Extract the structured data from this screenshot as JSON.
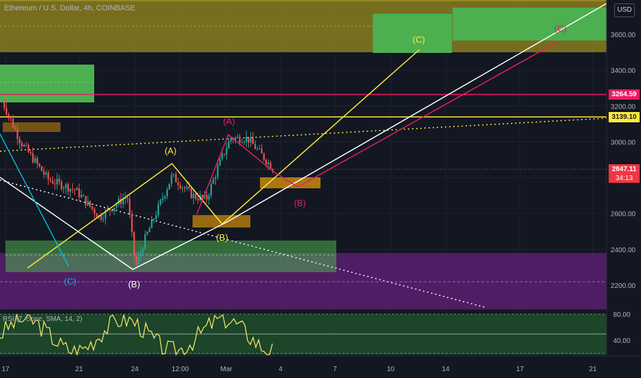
{
  "title": "Ethereum / U.S. Dollar, 4h, COINBASE",
  "currency_button": "USD",
  "rsi_legend": "RSI (7, close, SMA, 14, 2)",
  "price_labels": [
    {
      "key": "level_high",
      "text": "3264.59",
      "value": 3264.59,
      "bg": "#e91e63",
      "fg": "#ffffff"
    },
    {
      "key": "level_mid",
      "text": "3139.10",
      "value": 3139.1,
      "bg": "#ffeb3b",
      "fg": "#131722"
    },
    {
      "key": "last",
      "text": "2847.11",
      "value": 2847.11,
      "bg": "#f23645",
      "fg": "#ffffff"
    }
  ],
  "countdown": "34:13",
  "colors": {
    "up": "#26a69a",
    "down": "#ef5350",
    "yellow": "#ffeb3b",
    "pink": "#e91e63",
    "cyan": "#00bcd4",
    "white": "#ffffff",
    "green_zone": "#4caf50",
    "olive_zone": "#8a7d1e",
    "purple_zone": "#5b1f6e",
    "orange_zone": "#c8870f",
    "rsi_line": "#f0e468",
    "rsi_bg": "#1e4a2a"
  },
  "chart_data": {
    "type": "candlestick",
    "instrument": "Ethereum / U.S. Dollar",
    "interval": "4h",
    "exchange": "COINBASE",
    "x_ticks": [
      "17",
      "21",
      "24",
      "12:00",
      "Mar",
      "4",
      "7",
      "10",
      "14",
      "17",
      "21"
    ],
    "y_ticks": [
      2200,
      2400,
      2600,
      2800,
      3000,
      3200,
      3400,
      3600
    ],
    "y_range": [
      2080,
      3760
    ],
    "last_price": 2847.11,
    "horizontal_levels": [
      {
        "value": 3264.59,
        "color": "#e91e63"
      },
      {
        "value": 3139.1,
        "color": "#ffeb3b"
      }
    ],
    "wave_labels": [
      {
        "text": "(A)",
        "color": "#ffeb3b",
        "price": 3040
      },
      {
        "text": "(B)",
        "color": "#ffeb3b",
        "price": 2470
      },
      {
        "text": "(C)",
        "color": "#ffeb3b",
        "price": 3590
      },
      {
        "text": "(A)",
        "color": "#e91e63",
        "price": 3160
      },
      {
        "text": "(B)",
        "color": "#e91e63",
        "price": 2680
      },
      {
        "text": "(C)",
        "color": "#e91e63",
        "price": 3620
      },
      {
        "text": "(B)",
        "color": "#ffffff",
        "price": 2230
      },
      {
        "text": "(C)",
        "color": "#00bcd4",
        "price": 2240
      }
    ],
    "zones": [
      {
        "type": "resistance",
        "color": "olive",
        "from": 3505,
        "to": 3760
      },
      {
        "type": "target",
        "color": "green",
        "from": 3500,
        "to": 3710
      },
      {
        "type": "support",
        "color": "green",
        "from": 2300,
        "to": 2468
      },
      {
        "type": "support",
        "color": "purple",
        "from": 2080,
        "to": 2380
      }
    ],
    "rsi": {
      "period": 7,
      "source": "close",
      "ma": "SMA",
      "ma_length": 14,
      "y_ticks": [
        40,
        80
      ],
      "bands": [
        20,
        80
      ]
    }
  }
}
